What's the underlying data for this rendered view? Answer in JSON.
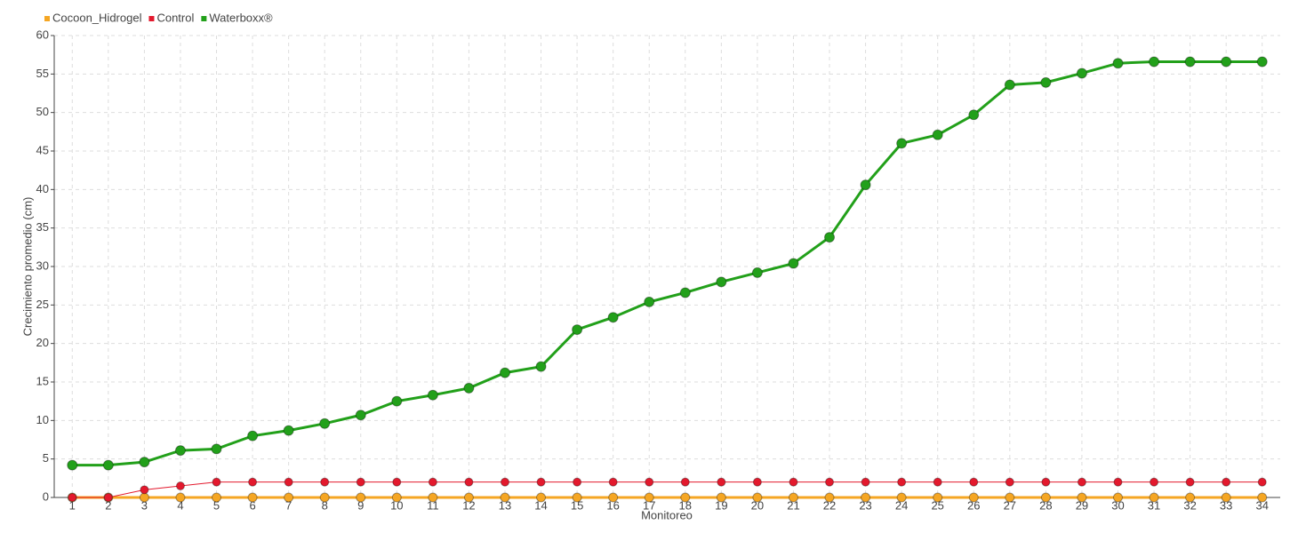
{
  "chart_data": {
    "type": "line",
    "x_label": "Monitoreo",
    "y_label": "Crecimiento promedio (cm)",
    "categories": [
      "1",
      "2",
      "3",
      "4",
      "5",
      "6",
      "7",
      "8",
      "9",
      "10",
      "11",
      "12",
      "13",
      "14",
      "15",
      "16",
      "17",
      "18",
      "19",
      "20",
      "21",
      "22",
      "23",
      "24",
      "25",
      "26",
      "27",
      "28",
      "29",
      "30",
      "31",
      "32",
      "33",
      "34"
    ],
    "series": [
      {
        "name": "Cocoon_Hidrogel",
        "color": "#f5a623",
        "values": [
          0,
          0,
          0,
          0,
          0,
          0,
          0,
          0,
          0,
          0,
          0,
          0,
          0,
          0,
          0,
          0,
          0,
          0,
          0,
          0,
          0,
          0,
          0,
          0,
          0,
          0,
          0,
          0,
          0,
          0,
          0,
          0,
          0,
          0
        ]
      },
      {
        "name": "Control",
        "color": "#e3192d",
        "values": [
          0,
          0,
          1,
          1.5,
          2,
          2,
          2,
          2,
          2,
          2,
          2,
          2,
          2,
          2,
          2,
          2,
          2,
          2,
          2,
          2,
          2,
          2,
          2,
          2,
          2,
          2,
          2,
          2,
          2,
          2,
          2,
          2,
          2,
          2
        ]
      },
      {
        "name": "Waterboxx®",
        "color": "#22a01a",
        "values": [
          4.2,
          4.2,
          4.6,
          6.1,
          6.3,
          8.0,
          8.7,
          9.6,
          10.7,
          12.5,
          13.3,
          14.2,
          16.2,
          17.0,
          21.8,
          23.4,
          25.4,
          26.6,
          28.0,
          29.2,
          30.4,
          33.8,
          40.6,
          46.0,
          47.1,
          49.7,
          53.6,
          53.9,
          55.1,
          56.4,
          56.6,
          56.6,
          56.6,
          56.6
        ]
      }
    ],
    "ylim": [
      0,
      60
    ],
    "yticks": [
      0,
      5,
      10,
      15,
      20,
      25,
      30,
      35,
      40,
      45,
      50,
      55,
      60
    ],
    "grid": true
  }
}
